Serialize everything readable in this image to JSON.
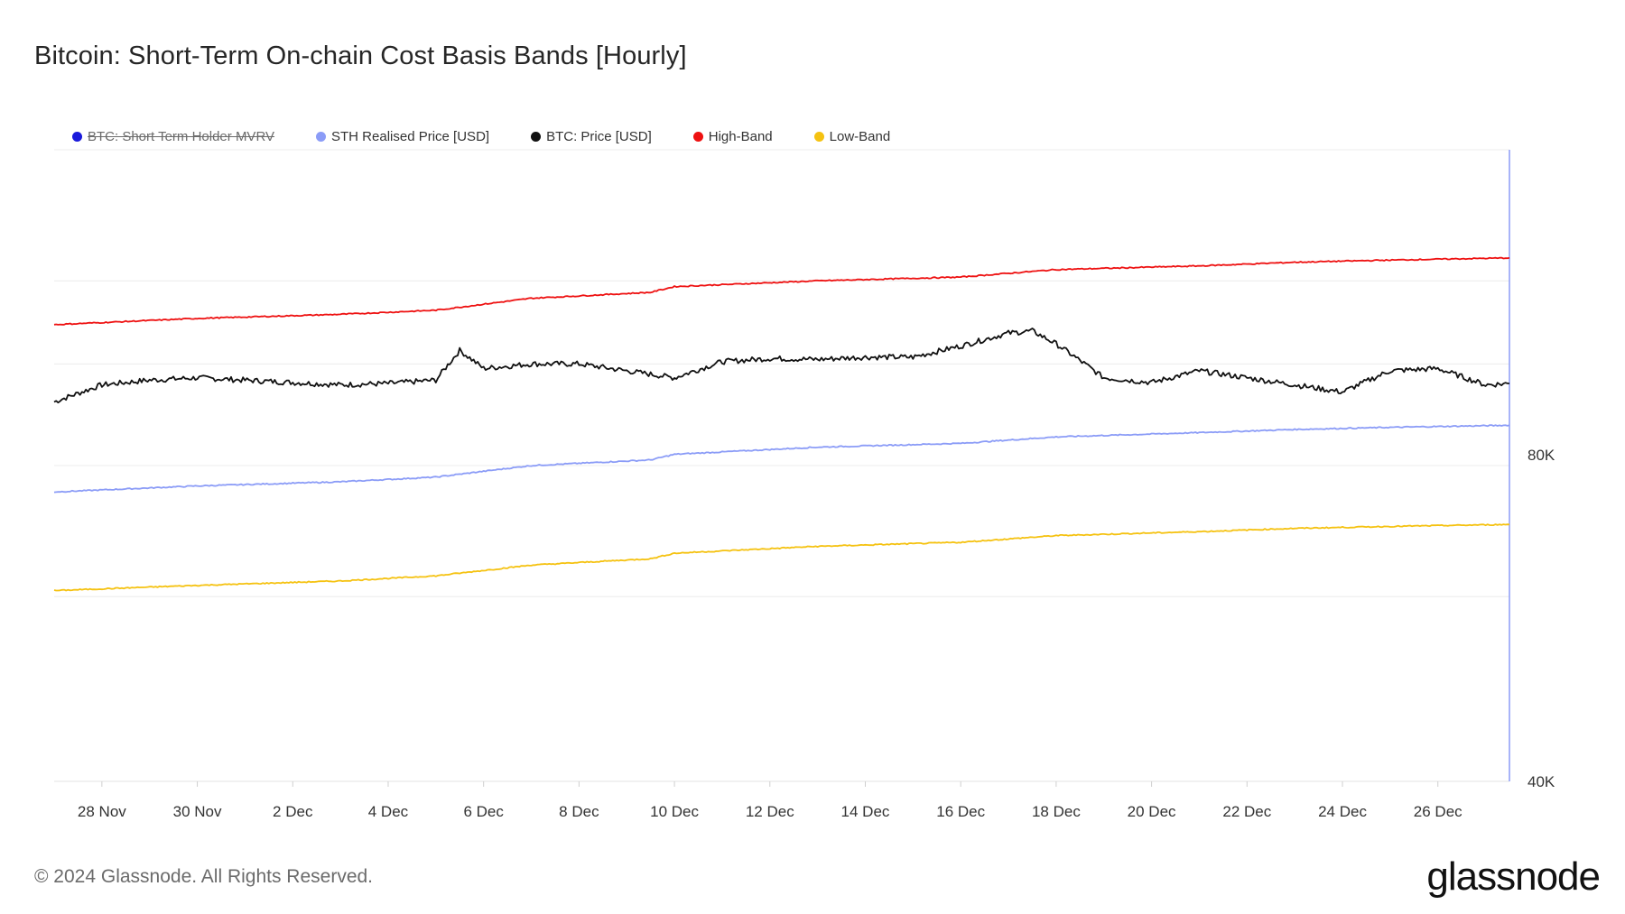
{
  "title": "Bitcoin: Short-Term On-chain Cost Basis Bands [Hourly]",
  "footer": "© 2024 Glassnode. All Rights Reserved.",
  "brand": "glassnode",
  "legend": [
    {
      "label": "BTC: Short Term Holder MVRV",
      "color": "#1a1adb",
      "hidden": true
    },
    {
      "label": "STH Realised Price [USD]",
      "color": "#8b9cf7",
      "hidden": false
    },
    {
      "label": "BTC: Price [USD]",
      "color": "#111111",
      "hidden": false
    },
    {
      "label": "High-Band",
      "color": "#ee1111",
      "hidden": false
    },
    {
      "label": "Low-Band",
      "color": "#f5c211",
      "hidden": false
    }
  ],
  "chart_data": {
    "type": "line",
    "title": "Bitcoin: Short-Term On-chain Cost Basis Bands [Hourly]",
    "x_range": [
      "2024-11-27",
      "2024-12-27T12:00"
    ],
    "x_ticks": [
      "28 Nov",
      "30 Nov",
      "2 Dec",
      "4 Dec",
      "6 Dec",
      "8 Dec",
      "10 Dec",
      "12 Dec",
      "14 Dec",
      "16 Dec",
      "18 Dec",
      "20 Dec",
      "22 Dec",
      "24 Dec",
      "26 Dec"
    ],
    "y_scale": "log",
    "y_ticks": [
      {
        "value": 40000,
        "label": "40K"
      },
      {
        "value": 80000,
        "label": "80K"
      }
    ],
    "y_range": [
      40000,
      160000
    ],
    "y_axis_side": "right",
    "grid": true,
    "legend_position": "top-left",
    "series": [
      {
        "name": "BTC: Price [USD]",
        "color": "#111111",
        "x": [
          "2024-11-27",
          "2024-11-28",
          "2024-11-29",
          "2024-11-30",
          "2024-12-01",
          "2024-12-02",
          "2024-12-03",
          "2024-12-04",
          "2024-12-05",
          "2024-12-05T12:00",
          "2024-12-06",
          "2024-12-07",
          "2024-12-08",
          "2024-12-09",
          "2024-12-10",
          "2024-12-11",
          "2024-12-12",
          "2024-12-13",
          "2024-12-14",
          "2024-12-15",
          "2024-12-16",
          "2024-12-17",
          "2024-12-17T12:00",
          "2024-12-18",
          "2024-12-19",
          "2024-12-20",
          "2024-12-21",
          "2024-12-22",
          "2024-12-23",
          "2024-12-24",
          "2024-12-25",
          "2024-12-26",
          "2024-12-27",
          "2024-12-27T12:00"
        ],
        "y": [
          92000,
          95500,
          96500,
          97000,
          96500,
          96000,
          95500,
          95800,
          96500,
          103000,
          99000,
          100000,
          100000,
          98500,
          97000,
          100500,
          101200,
          101000,
          101500,
          101500,
          104000,
          107000,
          107500,
          104500,
          97000,
          96000,
          98500,
          97000,
          95500,
          94000,
          98500,
          99000,
          95500,
          95800
        ]
      },
      {
        "name": "STH Realised Price [USD]",
        "color": "#8b9cf7",
        "x": [
          "2024-11-27",
          "2024-11-30",
          "2024-12-03",
          "2024-12-05",
          "2024-12-07",
          "2024-12-09T12:00",
          "2024-12-10",
          "2024-12-13",
          "2024-12-16",
          "2024-12-18",
          "2024-12-21",
          "2024-12-23",
          "2024-12-25",
          "2024-12-27T12:00"
        ],
        "y": [
          75500,
          76500,
          77200,
          78000,
          80000,
          81000,
          82000,
          83300,
          84000,
          85200,
          86000,
          86600,
          87000,
          87400
        ]
      },
      {
        "name": "High-Band",
        "color": "#ee1111",
        "x": [
          "2024-11-27",
          "2024-11-30",
          "2024-12-03",
          "2024-12-05",
          "2024-12-07",
          "2024-12-09T12:00",
          "2024-12-10",
          "2024-12-13",
          "2024-12-16",
          "2024-12-18",
          "2024-12-21",
          "2024-12-23",
          "2024-12-25",
          "2024-12-27T12:00"
        ],
        "y": [
          109000,
          110500,
          111500,
          112500,
          115500,
          117000,
          118500,
          120000,
          121000,
          123000,
          124000,
          125000,
          125600,
          126200
        ]
      },
      {
        "name": "Low-Band",
        "color": "#f5c211",
        "x": [
          "2024-11-27",
          "2024-11-30",
          "2024-12-03",
          "2024-12-05",
          "2024-12-07",
          "2024-12-09T12:00",
          "2024-12-10",
          "2024-12-13",
          "2024-12-16",
          "2024-12-18",
          "2024-12-21",
          "2024-12-23",
          "2024-12-25",
          "2024-12-27T12:00"
        ],
        "y": [
          60800,
          61500,
          62100,
          62800,
          64300,
          65200,
          66000,
          67000,
          67600,
          68600,
          69200,
          69700,
          70000,
          70300
        ]
      }
    ]
  }
}
